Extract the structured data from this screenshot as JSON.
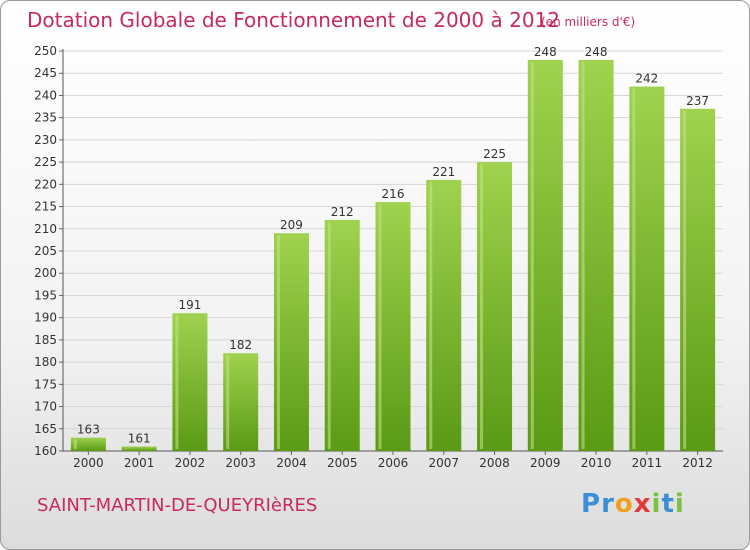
{
  "header": {
    "title": "Dotation Globale de Fonctionnement de 2000 à 2012",
    "subtitle": "(en milliers d'€)"
  },
  "footer": {
    "commune": "SAINT-MARTIN-DE-QUEYRIèRES",
    "brand_letters": [
      "P",
      "r",
      "o",
      "x",
      "i",
      "t",
      "i"
    ],
    "brand_colors": [
      "#3b8fd6",
      "#3b8fd6",
      "#f0a020",
      "#e23a3a",
      "#7cc242",
      "#3b8fd6",
      "#7cc242"
    ]
  },
  "colors": {
    "bar_light": "#9fd24f",
    "bar_dark": "#5a9a14",
    "text": "#c72a5b"
  },
  "chart_data": {
    "type": "bar",
    "categories": [
      "2000",
      "2001",
      "2002",
      "2003",
      "2004",
      "2005",
      "2006",
      "2007",
      "2008",
      "2009",
      "2010",
      "2011",
      "2012"
    ],
    "values": [
      163,
      161,
      191,
      182,
      209,
      212,
      216,
      221,
      225,
      248,
      248,
      242,
      237
    ],
    "ylim": [
      160,
      250
    ],
    "yticks": [
      160,
      165,
      170,
      175,
      180,
      185,
      190,
      195,
      200,
      205,
      210,
      215,
      220,
      225,
      230,
      235,
      240,
      245,
      250
    ],
    "grid": true
  }
}
